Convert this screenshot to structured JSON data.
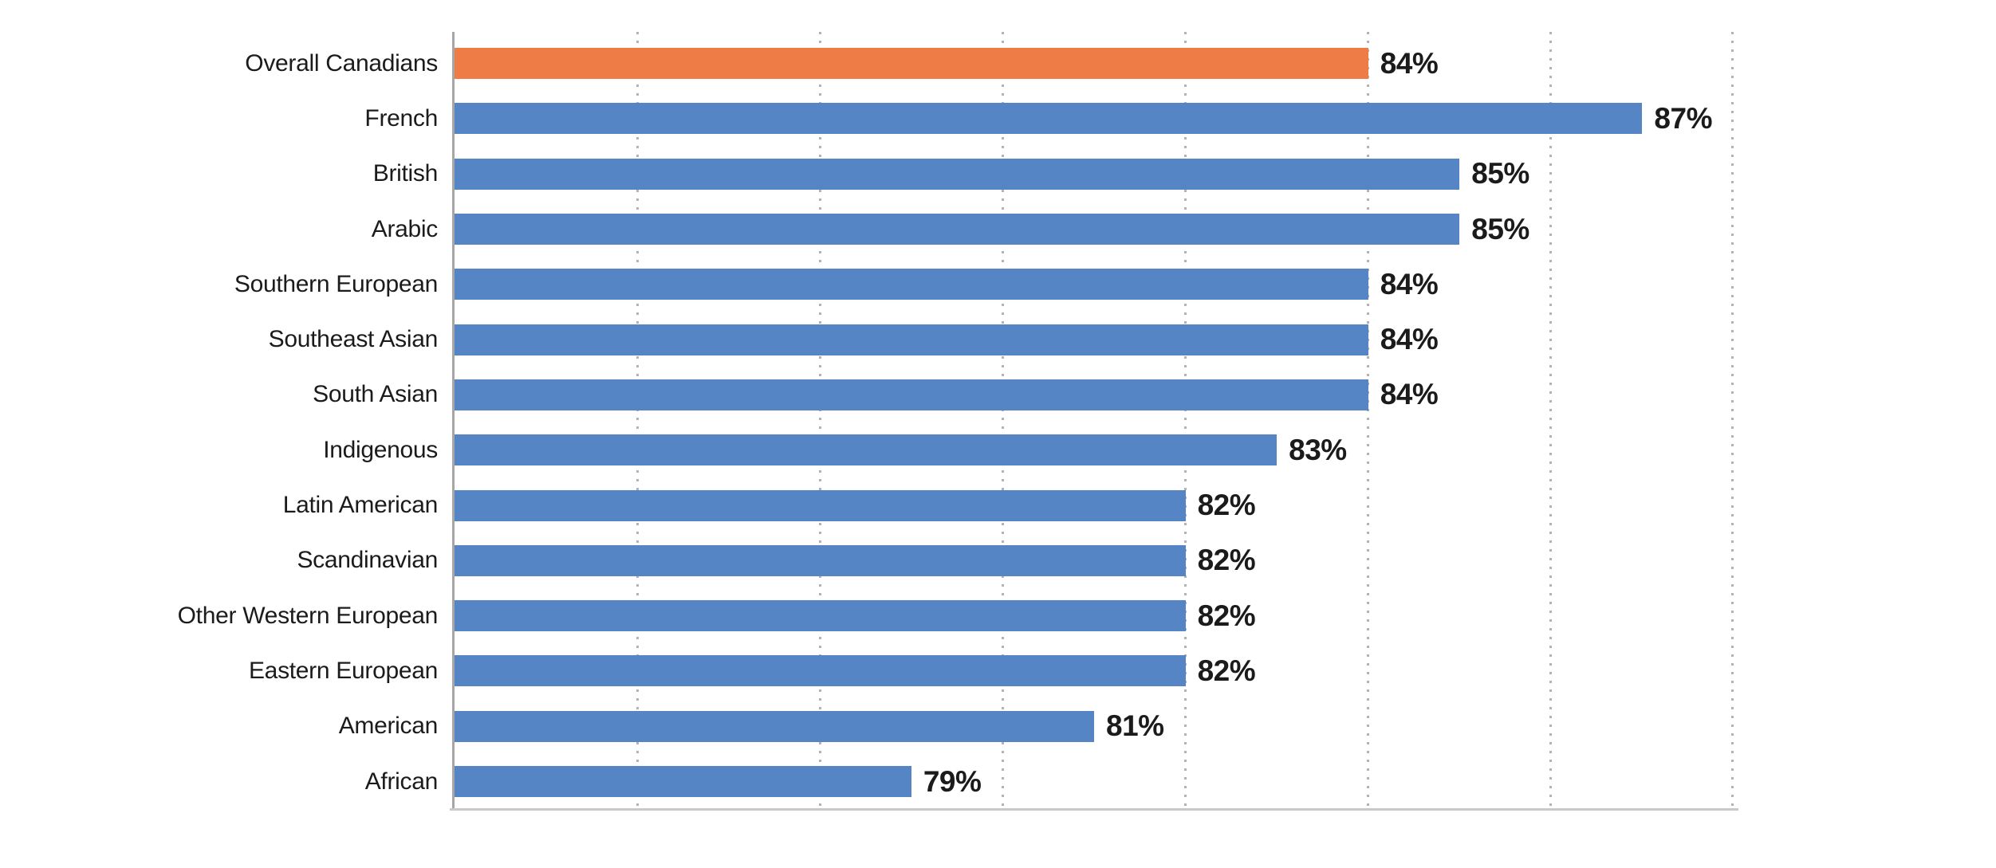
{
  "chart_data": {
    "type": "bar",
    "orientation": "horizontal",
    "title": "",
    "xlabel": "",
    "ylabel": "",
    "categories": [
      "Overall Canadians",
      "French",
      "British",
      "Arabic",
      "Southern European",
      "Southeast Asian",
      "South Asian",
      "Indigenous",
      "Latin American",
      "Scandinavian",
      "Other Western European",
      "Eastern European",
      "American",
      "African"
    ],
    "values": [
      84,
      87,
      85,
      85,
      84,
      84,
      84,
      83,
      82,
      82,
      82,
      82,
      81,
      79
    ],
    "value_suffix": "%",
    "xlim": [
      74,
      88
    ],
    "gridline_step": 2,
    "grid": "vertical-dotted",
    "legend": "none",
    "highlight_index": 0,
    "colors": {
      "default_bar": "#5585C4",
      "highlight_bar": "#ED7C47",
      "axis_line": "#A6A6A6",
      "baseline": "#C9C9C9",
      "grid_dots": "#B3B3B3",
      "text": "#1B1B1B"
    }
  }
}
